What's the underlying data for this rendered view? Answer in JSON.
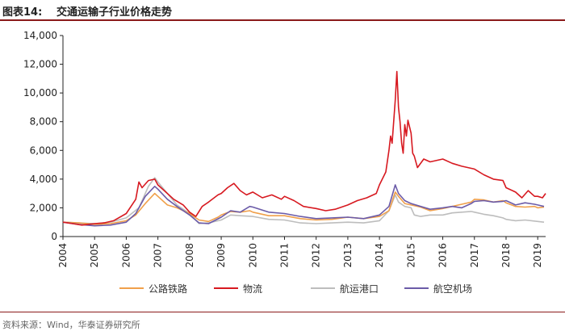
{
  "header": {
    "label": "图表14:",
    "title": "交通运输子行业价格走势"
  },
  "source": "资料来源：Wind，华泰证券研究所",
  "chart_data": {
    "type": "line",
    "title": "交通运输子行业价格走势",
    "xlabel": "",
    "ylabel": "",
    "ylim": [
      0,
      14000
    ],
    "xlim": [
      2004,
      2019.25
    ],
    "y_ticks": [
      "0",
      "2,000",
      "4,000",
      "6,000",
      "8,000",
      "10,000",
      "12,000",
      "14,000"
    ],
    "x_ticks": [
      "2004",
      "2005",
      "2006",
      "2007",
      "2008",
      "2009",
      "2010",
      "2011",
      "2012",
      "2013",
      "2014",
      "2015",
      "2016",
      "2017",
      "2018",
      "2019"
    ],
    "grid": false,
    "legend_position": "bottom",
    "series": [
      {
        "name": "公路铁路",
        "color": "#f0a04b",
        "points": [
          [
            2004.0,
            1000
          ],
          [
            2004.5,
            950
          ],
          [
            2005.0,
            850
          ],
          [
            2005.5,
            900
          ],
          [
            2006.0,
            1100
          ],
          [
            2006.3,
            1500
          ],
          [
            2006.6,
            2300
          ],
          [
            2006.9,
            3000
          ],
          [
            2007.0,
            2800
          ],
          [
            2007.3,
            2200
          ],
          [
            2007.6,
            2000
          ],
          [
            2008.0,
            1600
          ],
          [
            2008.3,
            1150
          ],
          [
            2008.6,
            1050
          ],
          [
            2008.9,
            1350
          ],
          [
            2009.0,
            1500
          ],
          [
            2009.3,
            1750
          ],
          [
            2009.6,
            1700
          ],
          [
            2009.9,
            1800
          ],
          [
            2010.0,
            1700
          ],
          [
            2010.5,
            1450
          ],
          [
            2011.0,
            1450
          ],
          [
            2011.5,
            1250
          ],
          [
            2012.0,
            1150
          ],
          [
            2012.5,
            1200
          ],
          [
            2013.0,
            1350
          ],
          [
            2013.5,
            1250
          ],
          [
            2014.0,
            1400
          ],
          [
            2014.3,
            1800
          ],
          [
            2014.5,
            3100
          ],
          [
            2014.6,
            2800
          ],
          [
            2014.8,
            2300
          ],
          [
            2015.0,
            2200
          ],
          [
            2015.3,
            2050
          ],
          [
            2015.6,
            1800
          ],
          [
            2016.0,
            1950
          ],
          [
            2016.3,
            2100
          ],
          [
            2016.6,
            2250
          ],
          [
            2016.9,
            2400
          ],
          [
            2017.0,
            2600
          ],
          [
            2017.3,
            2550
          ],
          [
            2017.6,
            2400
          ],
          [
            2017.9,
            2500
          ],
          [
            2018.0,
            2350
          ],
          [
            2018.3,
            2100
          ],
          [
            2018.6,
            2050
          ],
          [
            2018.9,
            2100
          ],
          [
            2019.0,
            2000
          ],
          [
            2019.2,
            2050
          ]
        ]
      },
      {
        "name": "物流",
        "color": "#d71920",
        "points": [
          [
            2004.0,
            1000
          ],
          [
            2004.3,
            900
          ],
          [
            2004.6,
            800
          ],
          [
            2005.0,
            900
          ],
          [
            2005.3,
            950
          ],
          [
            2005.6,
            1100
          ],
          [
            2006.0,
            1600
          ],
          [
            2006.3,
            2600
          ],
          [
            2006.4,
            3800
          ],
          [
            2006.5,
            3400
          ],
          [
            2006.7,
            3900
          ],
          [
            2006.9,
            4000
          ],
          [
            2007.0,
            3600
          ],
          [
            2007.2,
            3200
          ],
          [
            2007.5,
            2600
          ],
          [
            2007.8,
            2200
          ],
          [
            2008.0,
            1700
          ],
          [
            2008.2,
            1400
          ],
          [
            2008.4,
            2100
          ],
          [
            2008.6,
            2400
          ],
          [
            2008.9,
            2900
          ],
          [
            2009.0,
            3000
          ],
          [
            2009.2,
            3400
          ],
          [
            2009.4,
            3700
          ],
          [
            2009.6,
            3200
          ],
          [
            2009.8,
            2900
          ],
          [
            2010.0,
            3100
          ],
          [
            2010.3,
            2700
          ],
          [
            2010.6,
            2900
          ],
          [
            2010.9,
            2600
          ],
          [
            2011.0,
            2800
          ],
          [
            2011.3,
            2500
          ],
          [
            2011.6,
            2100
          ],
          [
            2012.0,
            1950
          ],
          [
            2012.3,
            1800
          ],
          [
            2012.6,
            1900
          ],
          [
            2013.0,
            2200
          ],
          [
            2013.3,
            2500
          ],
          [
            2013.6,
            2700
          ],
          [
            2013.9,
            3000
          ],
          [
            2014.0,
            3600
          ],
          [
            2014.2,
            4500
          ],
          [
            2014.3,
            6000
          ],
          [
            2014.35,
            7000
          ],
          [
            2014.4,
            6500
          ],
          [
            2014.5,
            9500
          ],
          [
            2014.55,
            11500
          ],
          [
            2014.6,
            9000
          ],
          [
            2014.65,
            8000
          ],
          [
            2014.7,
            6500
          ],
          [
            2014.75,
            5800
          ],
          [
            2014.8,
            7800
          ],
          [
            2014.85,
            7000
          ],
          [
            2014.9,
            8100
          ],
          [
            2015.0,
            7200
          ],
          [
            2015.05,
            5800
          ],
          [
            2015.1,
            5600
          ],
          [
            2015.2,
            4800
          ],
          [
            2015.4,
            5400
          ],
          [
            2015.6,
            5200
          ],
          [
            2016.0,
            5400
          ],
          [
            2016.3,
            5100
          ],
          [
            2016.6,
            4900
          ],
          [
            2017.0,
            4700
          ],
          [
            2017.3,
            4300
          ],
          [
            2017.6,
            4000
          ],
          [
            2017.9,
            3900
          ],
          [
            2018.0,
            3400
          ],
          [
            2018.3,
            3100
          ],
          [
            2018.5,
            2700
          ],
          [
            2018.7,
            3200
          ],
          [
            2018.9,
            2800
          ],
          [
            2019.0,
            2800
          ],
          [
            2019.15,
            2700
          ],
          [
            2019.25,
            3000
          ]
        ]
      },
      {
        "name": "航运港口",
        "color": "#bdbdbd",
        "points": [
          [
            2004.0,
            1000
          ],
          [
            2004.5,
            950
          ],
          [
            2005.0,
            900
          ],
          [
            2005.5,
            1000
          ],
          [
            2006.0,
            1300
          ],
          [
            2006.4,
            2000
          ],
          [
            2006.7,
            3500
          ],
          [
            2006.9,
            4100
          ],
          [
            2007.0,
            3800
          ],
          [
            2007.3,
            3000
          ],
          [
            2007.6,
            2200
          ],
          [
            2008.0,
            1600
          ],
          [
            2008.3,
            900
          ],
          [
            2008.6,
            950
          ],
          [
            2009.0,
            1150
          ],
          [
            2009.3,
            1500
          ],
          [
            2009.6,
            1450
          ],
          [
            2010.0,
            1400
          ],
          [
            2010.5,
            1200
          ],
          [
            2011.0,
            1150
          ],
          [
            2011.5,
            950
          ],
          [
            2012.0,
            900
          ],
          [
            2012.5,
            950
          ],
          [
            2013.0,
            1000
          ],
          [
            2013.5,
            950
          ],
          [
            2014.0,
            1100
          ],
          [
            2014.3,
            1800
          ],
          [
            2014.5,
            2900
          ],
          [
            2014.6,
            2400
          ],
          [
            2014.8,
            2100
          ],
          [
            2015.0,
            2000
          ],
          [
            2015.1,
            1500
          ],
          [
            2015.3,
            1400
          ],
          [
            2015.6,
            1500
          ],
          [
            2016.0,
            1500
          ],
          [
            2016.3,
            1650
          ],
          [
            2016.6,
            1700
          ],
          [
            2016.9,
            1750
          ],
          [
            2017.0,
            1700
          ],
          [
            2017.3,
            1550
          ],
          [
            2017.6,
            1450
          ],
          [
            2017.9,
            1300
          ],
          [
            2018.0,
            1200
          ],
          [
            2018.3,
            1100
          ],
          [
            2018.6,
            1150
          ],
          [
            2019.0,
            1050
          ],
          [
            2019.2,
            1000
          ]
        ]
      },
      {
        "name": "航空机场",
        "color": "#6b5ba8",
        "points": [
          [
            2004.0,
            1000
          ],
          [
            2004.5,
            850
          ],
          [
            2005.0,
            750
          ],
          [
            2005.5,
            800
          ],
          [
            2006.0,
            1000
          ],
          [
            2006.3,
            1600
          ],
          [
            2006.6,
            2800
          ],
          [
            2006.9,
            3500
          ],
          [
            2007.0,
            3300
          ],
          [
            2007.3,
            2600
          ],
          [
            2007.6,
            2100
          ],
          [
            2008.0,
            1500
          ],
          [
            2008.3,
            950
          ],
          [
            2008.6,
            900
          ],
          [
            2009.0,
            1350
          ],
          [
            2009.3,
            1800
          ],
          [
            2009.6,
            1700
          ],
          [
            2009.9,
            2100
          ],
          [
            2010.0,
            2050
          ],
          [
            2010.5,
            1700
          ],
          [
            2011.0,
            1600
          ],
          [
            2011.5,
            1400
          ],
          [
            2012.0,
            1250
          ],
          [
            2012.5,
            1300
          ],
          [
            2013.0,
            1350
          ],
          [
            2013.5,
            1250
          ],
          [
            2014.0,
            1500
          ],
          [
            2014.3,
            2100
          ],
          [
            2014.5,
            3600
          ],
          [
            2014.6,
            3000
          ],
          [
            2014.8,
            2500
          ],
          [
            2015.0,
            2300
          ],
          [
            2015.3,
            2100
          ],
          [
            2015.6,
            1900
          ],
          [
            2016.0,
            2000
          ],
          [
            2016.3,
            2100
          ],
          [
            2016.6,
            2000
          ],
          [
            2016.9,
            2300
          ],
          [
            2017.0,
            2450
          ],
          [
            2017.3,
            2500
          ],
          [
            2017.6,
            2400
          ],
          [
            2017.9,
            2450
          ],
          [
            2018.0,
            2500
          ],
          [
            2018.3,
            2200
          ],
          [
            2018.6,
            2350
          ],
          [
            2018.9,
            2250
          ],
          [
            2019.0,
            2200
          ],
          [
            2019.2,
            2100
          ]
        ]
      }
    ]
  }
}
